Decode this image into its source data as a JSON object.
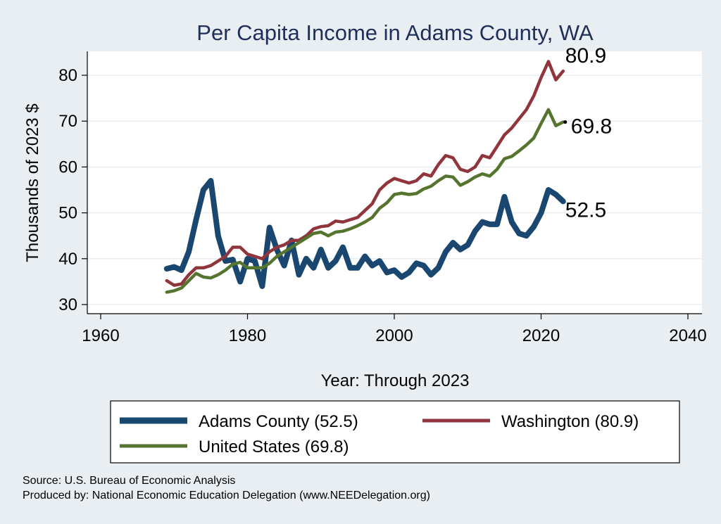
{
  "chart_data": {
    "type": "line",
    "title": "Per Capita Income in Adams County, WA",
    "xlabel": "Year: Through 2023",
    "ylabel": "Thousands of 2023 $",
    "xlim": [
      1960,
      2040
    ],
    "ylim": [
      30,
      85
    ],
    "xticks": [
      1960,
      1980,
      2000,
      2020,
      2040
    ],
    "yticks": [
      30,
      40,
      50,
      60,
      70,
      80
    ],
    "grid": true,
    "legend_position": "bottom",
    "x": [
      1969,
      1970,
      1971,
      1972,
      1973,
      1974,
      1975,
      1976,
      1977,
      1978,
      1979,
      1980,
      1981,
      1982,
      1983,
      1984,
      1985,
      1986,
      1987,
      1988,
      1989,
      1990,
      1991,
      1992,
      1993,
      1994,
      1995,
      1996,
      1997,
      1998,
      1999,
      2000,
      2001,
      2002,
      2003,
      2004,
      2005,
      2006,
      2007,
      2008,
      2009,
      2010,
      2011,
      2012,
      2013,
      2014,
      2015,
      2016,
      2017,
      2018,
      2019,
      2020,
      2021,
      2022,
      2023
    ],
    "series": [
      {
        "name": "Adams County (52.5)",
        "color": "#1a476f",
        "end_label": "52.5",
        "values": [
          37.8,
          38.2,
          37.5,
          41.5,
          48.5,
          55.0,
          57.0,
          45.0,
          39.5,
          39.8,
          35.0,
          40.0,
          39.5,
          34.0,
          46.8,
          42.0,
          38.5,
          44.0,
          36.5,
          40.0,
          38.0,
          42.0,
          38.0,
          39.5,
          42.5,
          38.0,
          38.0,
          40.5,
          38.5,
          39.5,
          37.0,
          37.5,
          36.0,
          37.0,
          39.0,
          38.5,
          36.5,
          38.0,
          41.5,
          43.5,
          42.0,
          43.0,
          46.0,
          48.0,
          47.5,
          47.5,
          53.5,
          48.0,
          45.5,
          45.0,
          47.0,
          50.0,
          55.0,
          54.0,
          52.5
        ]
      },
      {
        "name": "Washington (80.9)",
        "color": "#90353b",
        "end_label": "80.9",
        "values": [
          35.2,
          34.2,
          34.5,
          36.5,
          38.0,
          38.0,
          38.5,
          39.5,
          40.5,
          42.5,
          42.5,
          41.0,
          40.5,
          40.0,
          41.5,
          42.5,
          43.0,
          44.0,
          44.0,
          45.0,
          46.5,
          47.0,
          47.2,
          48.2,
          48.0,
          48.5,
          49.0,
          50.5,
          52.0,
          55.0,
          56.5,
          57.5,
          57.0,
          56.5,
          57.0,
          58.5,
          58.0,
          60.5,
          62.5,
          62.0,
          59.5,
          59.0,
          60.0,
          62.5,
          62.0,
          64.5,
          67.0,
          68.5,
          70.5,
          72.5,
          75.5,
          79.5,
          83.0,
          79.0,
          80.9
        ]
      },
      {
        "name": "United States (69.8)",
        "color": "#55752f",
        "end_label": "69.8",
        "values": [
          32.7,
          33.0,
          33.6,
          35.2,
          36.8,
          36.0,
          35.8,
          36.5,
          37.5,
          38.8,
          39.2,
          38.0,
          38.0,
          38.0,
          39.0,
          40.5,
          41.5,
          42.5,
          43.5,
          44.5,
          45.5,
          45.8,
          45.0,
          45.8,
          46.0,
          46.5,
          47.2,
          48.0,
          49.0,
          51.0,
          52.2,
          54.0,
          54.3,
          54.0,
          54.2,
          55.2,
          55.8,
          57.0,
          58.0,
          57.8,
          56.0,
          56.8,
          57.8,
          58.5,
          58.0,
          59.5,
          61.8,
          62.3,
          63.5,
          64.8,
          66.3,
          69.5,
          72.5,
          69.0,
          69.8
        ]
      }
    ],
    "source_note": "Source: U.S. Bureau of Economic Analysis",
    "produced_note": "Produced by: National Economic Education Delegation (www.NEEDelegation.org)"
  }
}
